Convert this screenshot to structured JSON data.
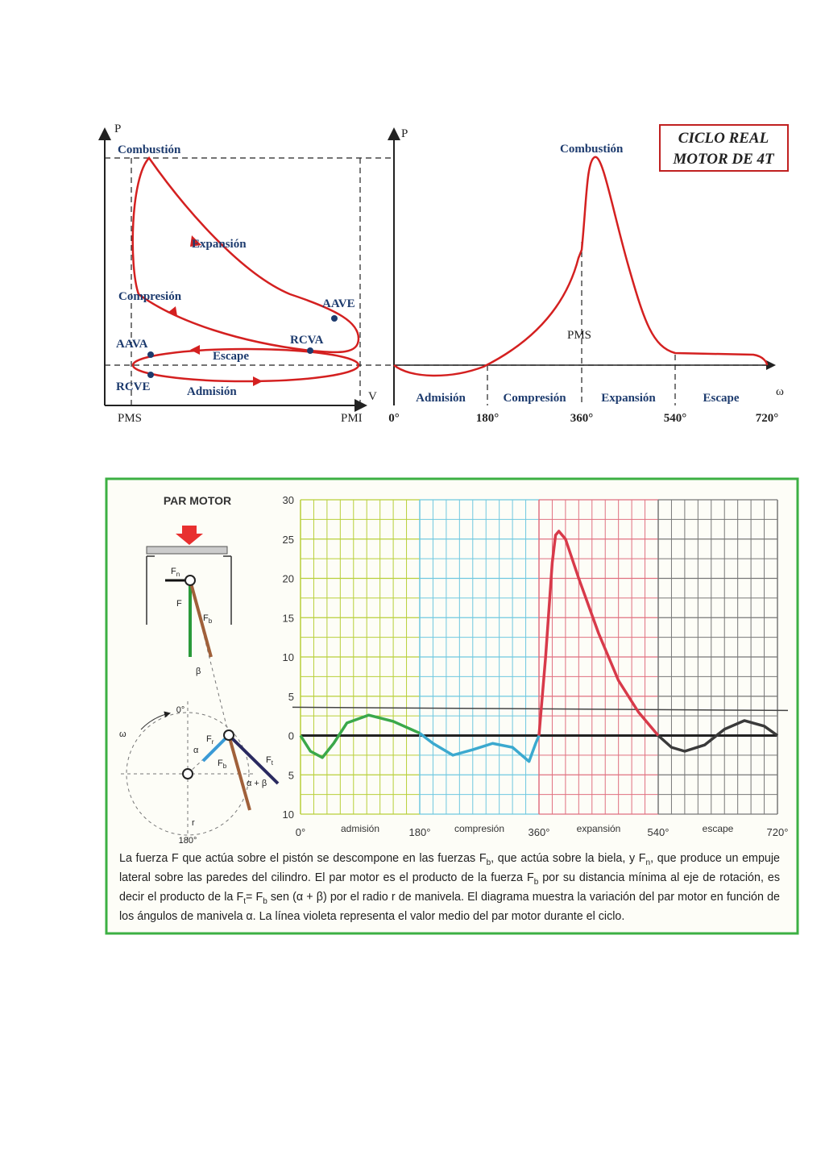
{
  "pv_diagram": {
    "p_axis": "P",
    "v_axis": "V",
    "combustion": "Combustión",
    "expansion": "Expansión",
    "compression": "Compresión",
    "aave": "AAVE",
    "rcva": "RCVA",
    "aava": "AAVA",
    "escape": "Escape",
    "rcve": "RCVE",
    "admission": "Admisión",
    "pms": "PMS",
    "pmi": "PMI"
  },
  "pw_diagram": {
    "p_axis": "P",
    "omega": "ω",
    "combustion": "Combustión",
    "pms": "PMS",
    "phases": [
      "Admisión",
      "Compresión",
      "Expansión",
      "Escape"
    ],
    "angles": [
      "0°",
      "180°",
      "360°",
      "540°",
      "720°"
    ]
  },
  "title_box": [
    "CICLO REAL",
    "MOTOR DE 4T"
  ],
  "torque": {
    "title": "PAR MOTOR",
    "yticks": [
      {
        "value": 30,
        "label": "30"
      },
      {
        "value": 25,
        "label": "25"
      },
      {
        "value": 20,
        "label": "20"
      },
      {
        "value": 15,
        "label": "15"
      },
      {
        "value": 10,
        "label": "10"
      },
      {
        "value": 5,
        "label": "5"
      },
      {
        "value": 0,
        "label": "0"
      },
      {
        "value": -5,
        "label": "5"
      },
      {
        "value": -10,
        "label": "10"
      }
    ],
    "ylim": [
      -10,
      30
    ],
    "xlim": [
      0,
      720
    ],
    "xticks": [
      {
        "value": 0,
        "label": "0°"
      },
      {
        "value": 180,
        "label": "180°"
      },
      {
        "value": 360,
        "label": "360°"
      },
      {
        "value": 540,
        "label": "540°"
      },
      {
        "value": 720,
        "label": "720°"
      }
    ],
    "phases": [
      "admisión",
      "compresión",
      "expansión",
      "escape"
    ],
    "series": [
      {
        "color": "#3aa84a",
        "x": [
          0,
          15,
          33,
          50,
          70,
          103,
          140,
          180
        ],
        "values": [
          0,
          -2,
          -2.8,
          -1,
          1.6,
          2.6,
          1.8,
          0.3
        ]
      },
      {
        "color": "#3ba9cf",
        "x": [
          180,
          200,
          230,
          260,
          290,
          320,
          345,
          355,
          360
        ],
        "values": [
          0.3,
          -1,
          -2.5,
          -1.8,
          -1,
          -1.5,
          -3.3,
          -1,
          0
        ]
      },
      {
        "color": "#d83a4a",
        "x": [
          360,
          370,
          380,
          385,
          390,
          400,
          420,
          450,
          480,
          510,
          540
        ],
        "values": [
          0,
          10,
          22,
          25.5,
          26,
          25,
          20,
          13,
          7,
          3,
          0
        ]
      },
      {
        "color": "#3a3a3a",
        "x": [
          540,
          560,
          580,
          610,
          640,
          670,
          700,
          720
        ],
        "values": [
          0,
          -1.5,
          -2,
          -1.2,
          0.8,
          1.9,
          1.2,
          0
        ]
      }
    ],
    "mean": 3.6,
    "force_labels": {
      "fn": {
        "main": "F",
        "sub": "n"
      },
      "f": "F",
      "fb_top": {
        "main": "F",
        "sub": "b"
      },
      "beta": "β",
      "zero": "0°",
      "omega": "ω",
      "fr": {
        "main": "F",
        "sub": "r"
      },
      "alpha": "α",
      "fb": {
        "main": "F",
        "sub": "b"
      },
      "ft": {
        "main": "F",
        "sub": "t"
      },
      "alpha_beta": "α + β",
      "r": "r",
      "bottom": "180°"
    }
  },
  "caption": [
    {
      "t": "La fuerza F que actúa sobre el pistón se descompone en las fuerzas F"
    },
    {
      "t": "b",
      "sub": true
    },
    {
      "t": ", que actúa sobre la biela, y F"
    },
    {
      "t": "n",
      "sub": true
    },
    {
      "t": ", que produce un empuje lateral sobre las paredes del cilindro. El par motor es el producto de la fuerza F"
    },
    {
      "t": "b",
      "sub": true
    },
    {
      "t": " por su distancia mínima al eje de rotación, es decir el producto de la F"
    },
    {
      "t": "t",
      "sub": true
    },
    {
      "t": "= F"
    },
    {
      "t": "b",
      "sub": true
    },
    {
      "t": " sen (α + β) por el radio r de manivela. El diagrama muestra la variación del par motor en función de los ángulos de manivela α. La línea violeta representa el valor medio del par motor durante el ciclo."
    }
  ]
}
